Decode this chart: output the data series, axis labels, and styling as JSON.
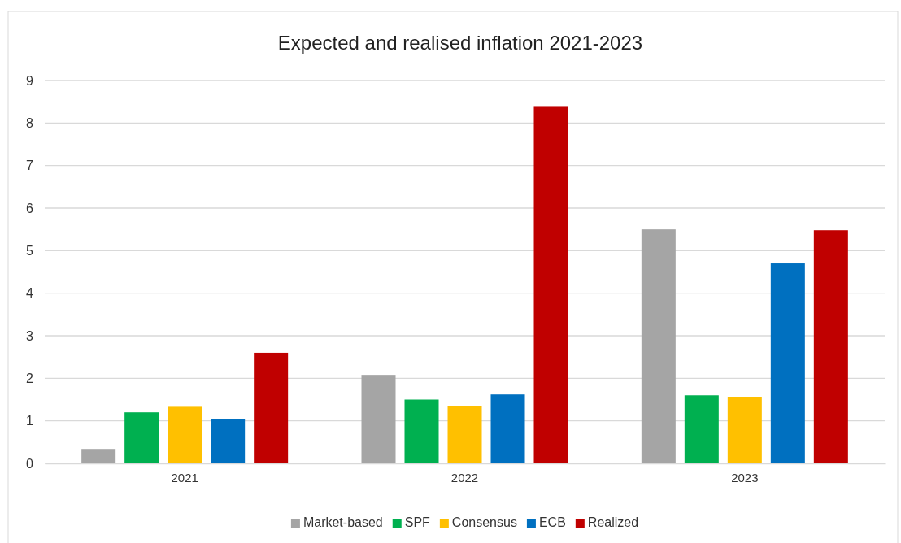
{
  "chart_data": {
    "type": "bar",
    "title": "Expected and realised inflation 2021-2023",
    "categories": [
      "2021",
      "2022",
      "2023"
    ],
    "series": [
      {
        "name": "Market-based",
        "color": "#a5a5a5",
        "values": [
          0.34,
          2.08,
          5.5
        ]
      },
      {
        "name": "SPF",
        "color": "#00b050",
        "values": [
          1.2,
          1.5,
          1.6
        ]
      },
      {
        "name": "Consensus",
        "color": "#ffc000",
        "values": [
          1.33,
          1.35,
          1.55
        ]
      },
      {
        "name": "ECB",
        "color": "#0070c0",
        "values": [
          1.05,
          1.62,
          4.7
        ]
      },
      {
        "name": "Realized",
        "color": "#c00000",
        "values": [
          2.6,
          8.38,
          5.48
        ]
      }
    ],
    "ylim": [
      0,
      9
    ],
    "yticks": [
      0,
      1,
      2,
      3,
      4,
      5,
      6,
      7,
      8,
      9
    ],
    "grid": "y",
    "legend": "bottom"
  }
}
